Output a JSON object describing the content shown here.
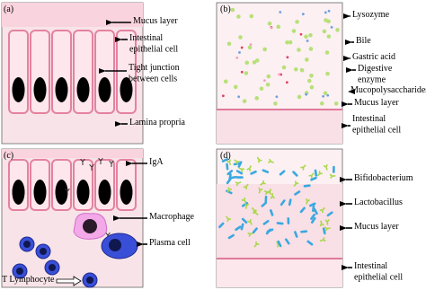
{
  "panels": [
    {
      "letter": "(a)",
      "labels": [
        {
          "lines": [
            "Mucus layer"
          ]
        },
        {
          "lines": [
            "Intestinal",
            "epithelial cell"
          ]
        },
        {
          "lines": [
            "Tight junction",
            "between cells"
          ]
        },
        {
          "lines": [
            "Lamina propria"
          ]
        }
      ]
    },
    {
      "letter": "(b)",
      "labels": [
        {
          "lines": [
            "Lysozyme"
          ]
        },
        {
          "lines": [
            "Bile"
          ]
        },
        {
          "lines": [
            "Gastric acid"
          ]
        },
        {
          "lines": [
            "Digestive",
            "enzyme"
          ]
        },
        {
          "lines": [
            "Mucopolysaccharides"
          ]
        },
        {
          "lines": [
            "Mucus layer"
          ]
        },
        {
          "lines": [
            "Intestinal",
            "epithelial cell"
          ]
        }
      ]
    },
    {
      "letter": "(c)",
      "labels": [
        {
          "lines": [
            "IgA"
          ]
        },
        {
          "lines": [
            "Macrophage"
          ]
        },
        {
          "lines": [
            "Plasma cell"
          ]
        },
        {
          "lines": [
            "T Lymphocyte"
          ]
        }
      ]
    },
    {
      "letter": "(d)",
      "labels": [
        {
          "lines": [
            "Bifidobacterium"
          ]
        },
        {
          "lines": [
            "Lactobacillus"
          ]
        },
        {
          "lines": [
            "Mucus layer"
          ]
        },
        {
          "lines": [
            "Intestinal",
            "epithelial cell"
          ]
        }
      ]
    }
  ]
}
